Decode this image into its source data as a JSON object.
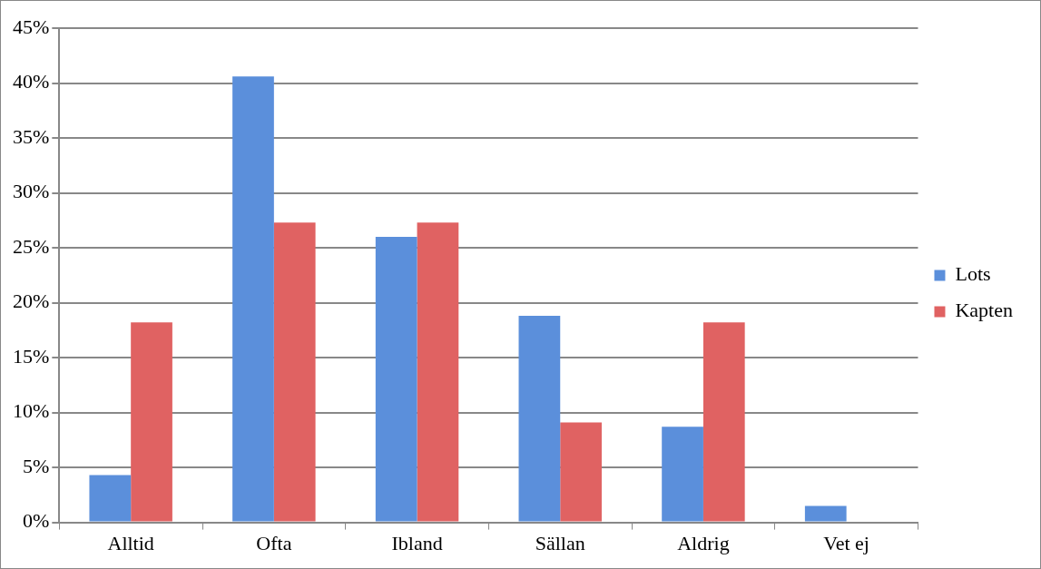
{
  "chart_data": {
    "type": "bar",
    "categories": [
      "Alltid",
      "Ofta",
      "Ibland",
      "Sällan",
      "Aldrig",
      "Vet ej"
    ],
    "series": [
      {
        "name": "Lots",
        "color": "#5b8fdb",
        "values": [
          4.3,
          40.6,
          26.0,
          18.8,
          8.7,
          1.5
        ]
      },
      {
        "name": "Kapten",
        "color": "#e06262",
        "values": [
          18.2,
          27.3,
          27.3,
          9.1,
          18.2,
          0
        ]
      }
    ],
    "ylim": [
      0,
      45
    ],
    "yticks": [
      {
        "value": 0,
        "label": "0%"
      },
      {
        "value": 5,
        "label": "5%"
      },
      {
        "value": 10,
        "label": "10%"
      },
      {
        "value": 15,
        "label": "15%"
      },
      {
        "value": 20,
        "label": "20%"
      },
      {
        "value": 25,
        "label": "25%"
      },
      {
        "value": 30,
        "label": "30%"
      },
      {
        "value": 35,
        "label": "35%"
      },
      {
        "value": 40,
        "label": "40%"
      },
      {
        "value": 45,
        "label": "45%"
      }
    ],
    "grid": "y",
    "legend": "right"
  }
}
